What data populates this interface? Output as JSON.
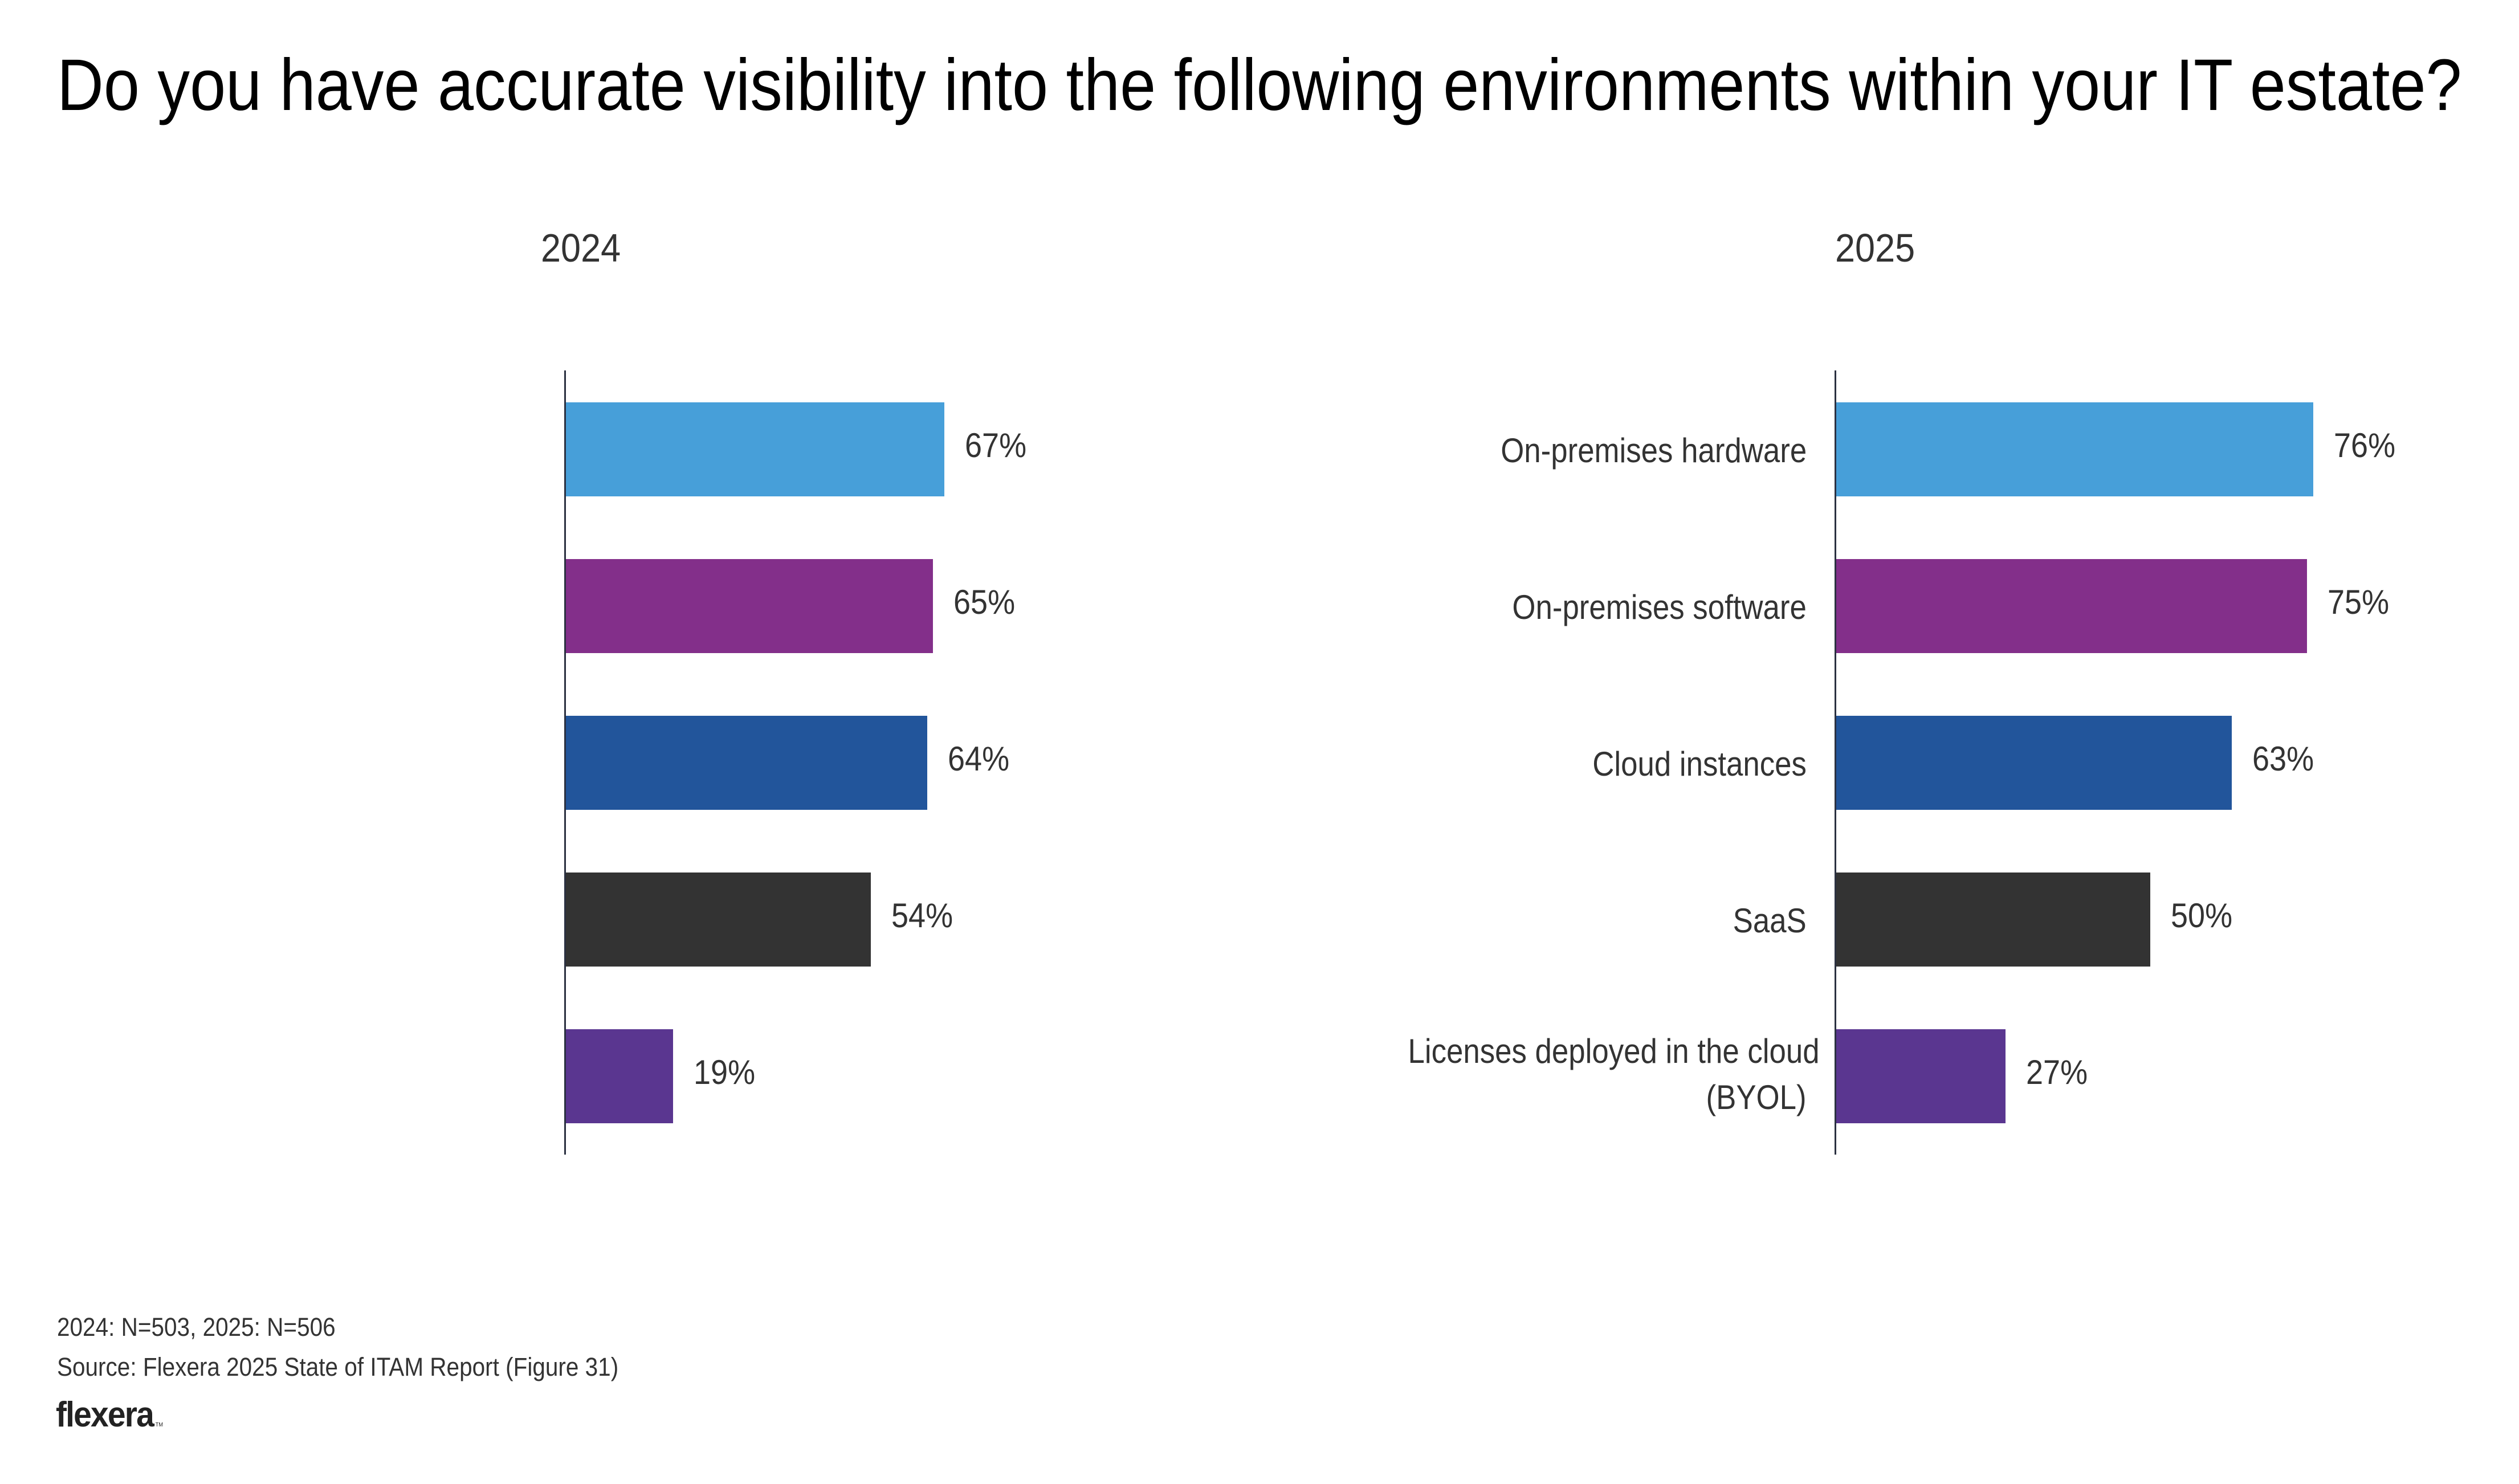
{
  "title": "Do you have accurate visibility into the following environments within your IT estate?",
  "colors": {
    "rank1": "#479FD9",
    "rank2": "#832F8A",
    "rank3": "#22559B",
    "rank4": "#333333",
    "rank5": "#5A3690"
  },
  "chart_data": [
    {
      "type": "bar",
      "orientation": "horizontal",
      "title": "2024",
      "categories": [
        "On-premises software",
        "On-premises hardware",
        "Cloud instances",
        "SaaS",
        "Licenses deployed in the cloud (BYOL)"
      ],
      "label_lines": [
        [
          "On-premises software"
        ],
        [
          "On-premises hardware"
        ],
        [
          "Cloud instances"
        ],
        [
          "SaaS"
        ],
        [
          "Licenses deployed in the cloud",
          "(BYOL)"
        ]
      ],
      "values": [
        67,
        65,
        64,
        54,
        19
      ],
      "value_labels": [
        "67%",
        "65%",
        "64%",
        "54%",
        "19%"
      ],
      "colors": [
        "#479FD9",
        "#832F8A",
        "#22559B",
        "#333333",
        "#5A3690"
      ],
      "xlabel": "",
      "ylabel": "",
      "xlim": [
        0,
        100
      ],
      "grid": false,
      "legend": "none"
    },
    {
      "type": "bar",
      "orientation": "horizontal",
      "title": "2025",
      "categories": [
        "On-premises hardware",
        "On-premises software",
        "Cloud instances",
        "SaaS",
        "Licenses deployed in the cloud (BYOL)"
      ],
      "label_lines": [
        [
          "On-premises hardware"
        ],
        [
          "On-premises software"
        ],
        [
          "Cloud instances"
        ],
        [
          "SaaS"
        ],
        [
          "Licenses deployed in the cloud",
          "(BYOL)"
        ]
      ],
      "values": [
        76,
        75,
        63,
        50,
        27
      ],
      "value_labels": [
        "76%",
        "75%",
        "63%",
        "50%",
        "27%"
      ],
      "colors": [
        "#479FD9",
        "#832F8A",
        "#22559B",
        "#333333",
        "#5A3690"
      ],
      "xlabel": "",
      "ylabel": "",
      "xlim": [
        0,
        100
      ],
      "grid": false,
      "legend": "none"
    }
  ],
  "footer": {
    "sample_sizes": "2024: N=503, 2025: N=506",
    "source": "Source: Flexera 2025 State of ITAM Report (Figure 31)",
    "logo_text": "flexera",
    "logo_mark": "TM"
  }
}
